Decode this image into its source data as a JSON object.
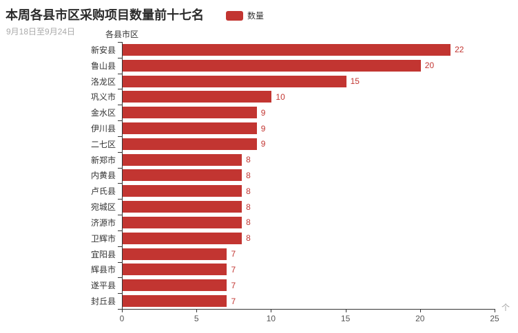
{
  "chart_data": {
    "type": "bar",
    "orientation": "horizontal",
    "title": "本周各县市区采购项目数量前十七名",
    "subtitle": "9月18日至9月24日",
    "legend": [
      "数量"
    ],
    "legend_position": "top",
    "ylabel": "各县市区",
    "xlabel": "个",
    "xlim": [
      0,
      25
    ],
    "x_ticks": [
      0,
      5,
      10,
      15,
      20,
      25
    ],
    "grid": false,
    "bar_color": "#c23531",
    "value_label_color": "#c23531",
    "categories": [
      "新安县",
      "鲁山县",
      "洛龙区",
      "巩义市",
      "金水区",
      "伊川县",
      "二七区",
      "新郑市",
      "内黄县",
      "卢氏县",
      "宛城区",
      "济源市",
      "卫辉市",
      "宜阳县",
      "辉县市",
      "遂平县",
      "封丘县"
    ],
    "values": [
      22,
      20,
      15,
      10,
      9,
      9,
      9,
      8,
      8,
      8,
      8,
      8,
      8,
      7,
      7,
      7,
      7
    ]
  }
}
